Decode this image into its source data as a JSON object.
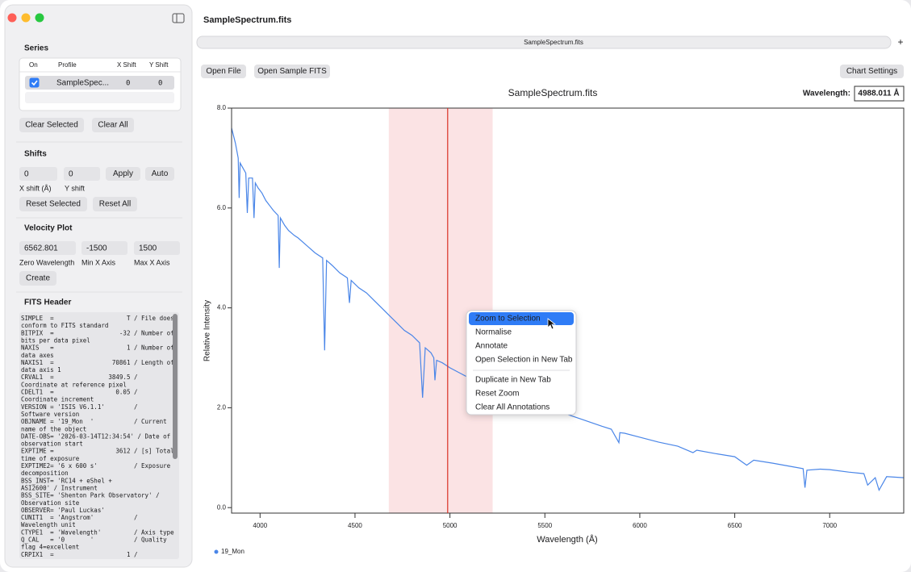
{
  "window": {
    "title": "SampleSpectrum.fits",
    "tab": "SampleSpectrum.fits",
    "new_tab": "+"
  },
  "sidebar": {
    "series": {
      "heading": "Series",
      "columns": [
        "On",
        "Profile",
        "X Shift",
        "Y Shift"
      ],
      "rows": [
        {
          "checked": true,
          "profile": "SampleSpec...",
          "x_shift": "0",
          "y_shift": "0"
        }
      ],
      "buttons": [
        "Clear Selected",
        "Clear All"
      ]
    },
    "shifts": {
      "heading": "Shifts",
      "fields": [
        "0",
        "0"
      ],
      "actions": [
        "Apply",
        "Auto"
      ],
      "labels": [
        "X shift (Å)",
        "Y shift"
      ],
      "buttons": [
        "Reset Selected",
        "Reset All"
      ]
    },
    "velocity_plot": {
      "heading": "Velocity Plot",
      "fields": [
        "6562.801",
        "-1500",
        "1500"
      ],
      "labels": [
        "Zero Wavelength",
        "Min X Axis",
        "Max X Axis"
      ],
      "button": "Create"
    },
    "fits_header": {
      "heading": "FITS Header",
      "lines": [
        "SIMPLE  =                    T / File does",
        "conform to FITS standard",
        "BITPIX  =                  -32 / Number of",
        "bits per data pixel",
        "NAXIS   =                    1 / Number of",
        "data axes",
        "NAXIS1  =                70861 / Length of",
        "data axis 1",
        "CRVAL1  =               3849.5 /",
        "Coordinate at reference pixel",
        "CDELT1  =                 0.05 /",
        "Coordinate increment",
        "VERSION = 'ISIS V6.1.1'        /",
        "Software version",
        "OBJNAME = '19_Mon  '           / Current",
        "name of the object",
        "DATE-OBS= '2026-03-14T12:34:54' / Date of",
        "observation start",
        "EXPTIME =                 3612 / [s] Total",
        "time of exposure",
        "EXPTIME2= '6 x 600 s'          / Exposure",
        "decomposition",
        "BSS_INST= 'RC14 + eShel +",
        "ASI2600' / Instrument",
        "BSS_SITE= 'Shenton Park Observatory' /",
        "Observation site",
        "OBSERVER= 'Paul Luckas'",
        "CUNIT1  = 'Angstrom'           /",
        "Wavelength unit",
        "CTYPE1  = 'Wavelength'         / Axis type",
        "Q_CAL   = '0       '           / Quality",
        "flag 4=excellent",
        "CRPIX1  =                    1 /"
      ]
    }
  },
  "toolbar": {
    "buttons": [
      "Open File",
      "Open Sample FITS"
    ],
    "chart_settings": "Chart Settings"
  },
  "readout": {
    "label": "Wavelength:",
    "value": {
      "value": 4988.011,
      "label": "4988.011 Å"
    }
  },
  "chart_data": {
    "type": "line",
    "title": "SampleSpectrum.fits",
    "x_label": "Wavelength (Å)",
    "y_label": "Relative Intensity",
    "x": [
      3850,
      3870,
      3885,
      3890,
      3895,
      3910,
      3925,
      3933,
      3940,
      3960,
      3968,
      3975,
      3990,
      4010,
      4030,
      4050,
      4070,
      4095,
      4101,
      4107,
      4130,
      4150,
      4180,
      4200,
      4230,
      4260,
      4290,
      4330,
      4340,
      4350,
      4380,
      4420,
      4460,
      4471,
      4480,
      4520,
      4560,
      4600,
      4640,
      4680,
      4720,
      4760,
      4800,
      4840,
      4856,
      4870,
      4900,
      4915,
      4921,
      4930,
      4960,
      5000,
      5050,
      5100,
      5150,
      5170,
      5180,
      5230,
      5300,
      5400,
      5500,
      5600,
      5700,
      5800,
      5850,
      5890,
      5895,
      5920,
      6000,
      6100,
      6200,
      6280,
      6300,
      6400,
      6500,
      6563,
      6600,
      6700,
      6800,
      6860,
      6870,
      6880,
      6950,
      7000,
      7100,
      7180,
      7200,
      7240,
      7260,
      7300,
      7390
    ],
    "series": [
      {
        "name": "19_Mon",
        "color": "#4a86e8",
        "values": [
          7.6,
          7.3,
          7.0,
          6.2,
          6.9,
          6.8,
          6.7,
          5.9,
          6.6,
          6.6,
          5.8,
          6.5,
          6.4,
          6.3,
          6.15,
          6.05,
          5.95,
          5.85,
          4.8,
          5.8,
          5.65,
          5.55,
          5.45,
          5.4,
          5.3,
          5.2,
          5.1,
          5.0,
          3.15,
          4.95,
          4.85,
          4.7,
          4.6,
          4.1,
          4.55,
          4.4,
          4.3,
          4.15,
          4.0,
          3.85,
          3.7,
          3.55,
          3.45,
          3.3,
          2.2,
          3.2,
          3.1,
          3.0,
          2.55,
          2.95,
          2.9,
          2.8,
          2.7,
          2.6,
          2.5,
          2.35,
          2.45,
          2.38,
          2.25,
          2.13,
          2.0,
          1.89,
          1.76,
          1.63,
          1.57,
          1.3,
          1.5,
          1.49,
          1.41,
          1.31,
          1.23,
          1.1,
          1.15,
          1.08,
          1.02,
          0.85,
          0.95,
          0.89,
          0.82,
          0.78,
          0.4,
          0.75,
          0.77,
          0.76,
          0.71,
          0.68,
          0.45,
          0.6,
          0.35,
          0.62,
          0.6
        ]
      }
    ],
    "xlim": [
      3850,
      7390
    ],
    "ylim": [
      -0.11,
      8.0
    ],
    "xticks": [
      4000,
      4500,
      5000,
      5500,
      6000,
      6500,
      7000
    ],
    "yticks": [
      {
        "value": 0,
        "label": "0.0"
      },
      {
        "value": 2,
        "label": "2.0"
      },
      {
        "value": 4,
        "label": "4.0"
      },
      {
        "value": 6,
        "label": "6.0"
      },
      {
        "value": 8,
        "label": "8.0"
      }
    ],
    "selection": [
      4678,
      5225
    ],
    "selection_color": "#fbe3e4",
    "cursor_color": "#d93025"
  },
  "context_menu": {
    "groups": [
      [
        "Zoom to Selection",
        "Normalise",
        "Annotate",
        "Open Selection in New Tab"
      ],
      [
        "Duplicate in New Tab",
        "Reset Zoom",
        "Clear All Annotations"
      ]
    ],
    "highlighted": 0
  }
}
